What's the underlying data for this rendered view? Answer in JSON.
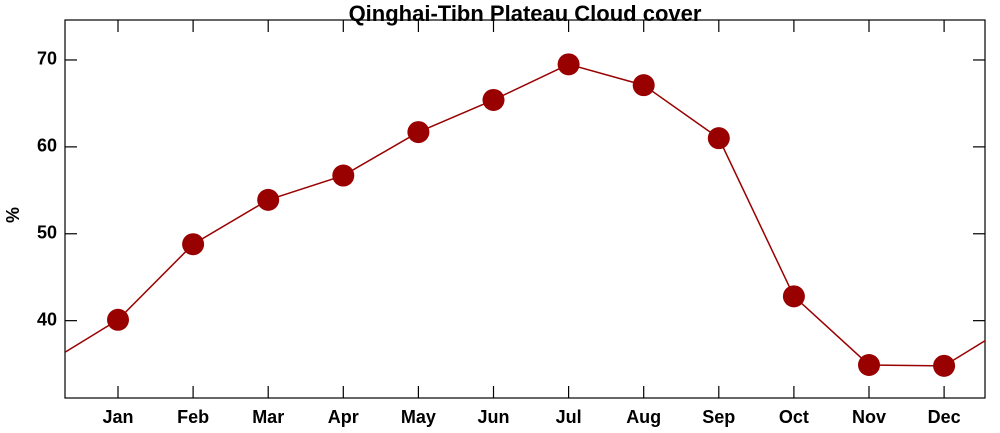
{
  "chart_data": {
    "type": "line",
    "title": "Qinghai-Tibn Plateau Cloud cover",
    "y_label": "%",
    "categories": [
      "Jan",
      "Feb",
      "Mar",
      "Apr",
      "May",
      "Jun",
      "Jul",
      "Aug",
      "Sep",
      "Oct",
      "Nov",
      "Dec"
    ],
    "series": [
      {
        "name": "Cloud cover",
        "color": "#990000",
        "values": [
          40.1,
          48.8,
          53.9,
          56.7,
          61.7,
          65.4,
          69.5,
          67.1,
          61.0,
          42.8,
          34.9,
          34.8
        ]
      }
    ],
    "ylim": [
      31.1,
      74.6
    ],
    "yticks": [
      40,
      50,
      60,
      70
    ],
    "cyclic": true
  }
}
